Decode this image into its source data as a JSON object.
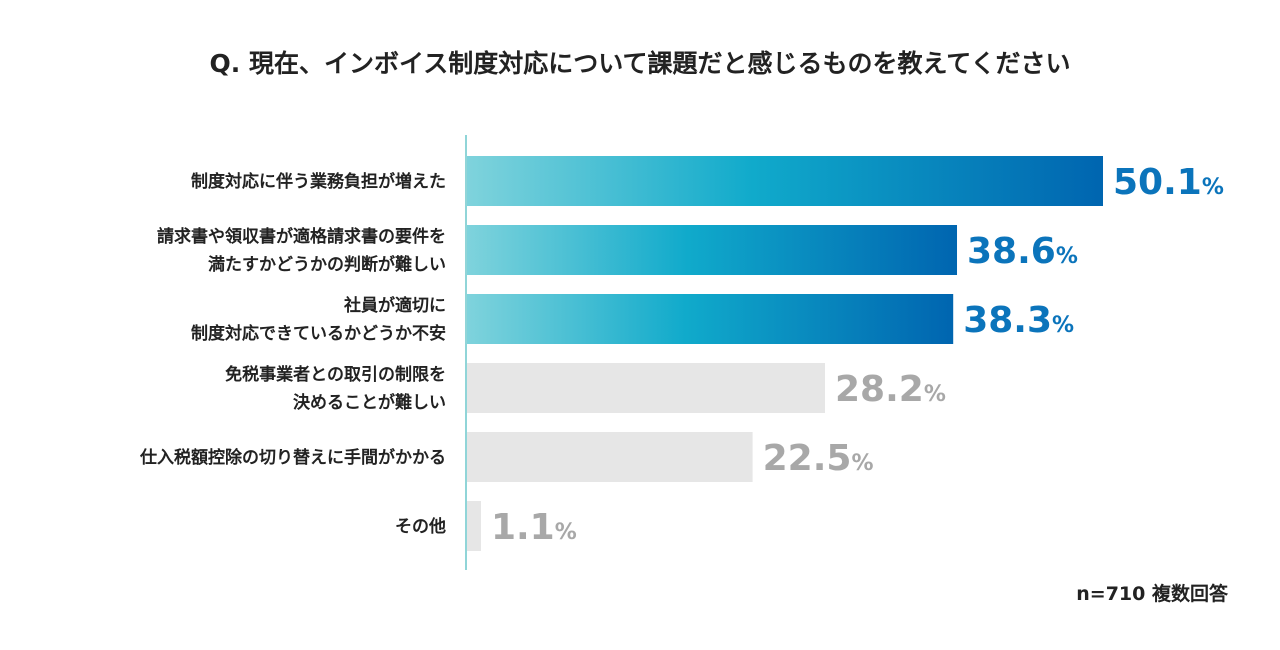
{
  "chart_data": {
    "type": "bar",
    "orientation": "horizontal",
    "title": "Q. 現在、インボイス制度対応について課題だと感じるものを教えてください",
    "categories": [
      [
        "制度対応に伴う業務負担が増えた"
      ],
      [
        "請求書や領収書が適格請求書の要件を",
        "満たすかどうかの判断が難しい"
      ],
      [
        "社員が適切に",
        "制度対応できているかどうか不安"
      ],
      [
        "免税事業者との取引の制限を",
        "決めることが難しい"
      ],
      [
        "仕入税額控除の切り替えに手間がかかる"
      ],
      [
        "その他"
      ]
    ],
    "values": [
      50.1,
      38.6,
      38.3,
      28.2,
      22.5,
      1.1
    ],
    "value_labels": [
      "50.1",
      "38.6",
      "38.3",
      "28.2",
      "22.5",
      "1.1"
    ],
    "value_suffix": "%",
    "highlighted": [
      true,
      true,
      true,
      false,
      false,
      false
    ],
    "xlim": [
      0,
      50.1
    ],
    "note": "n=710 複数回答",
    "colors": {
      "highlight_start": "#7fd3dc",
      "highlight_mid": "#10aacb",
      "highlight_end": "#0065b0",
      "highlight_text": "#0b74bb",
      "muted_bar": "#e6e6e6",
      "muted_text": "#a8a8a8",
      "axis": "#6cc7cc"
    }
  }
}
